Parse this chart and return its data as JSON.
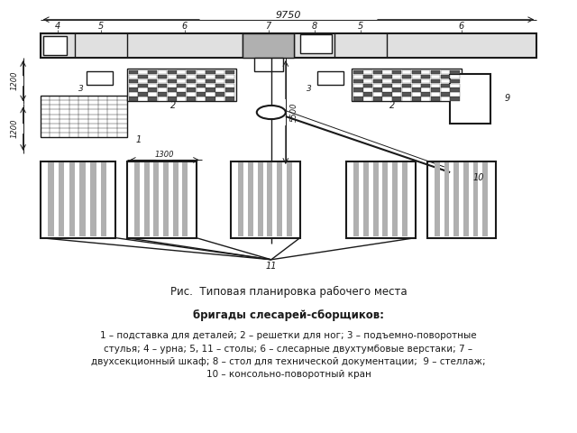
{
  "title_line1": "Рис.  Типовая планировка рабочего места",
  "title_line2": "бригады слесарей-сборщиков:",
  "caption": "1 – подставка для деталей; 2 – решетки для ног; 3 – подъемно-поворотные\nстулья; 4 – урна; 5, 11 – столы; 6 – слесарные двухтумбовые верстаки; 7 –\nдвухсекционный шкаф; 8 – стол для технической документации;  9 – стеллаж;\n10 – консольно-поворотный кран",
  "bg_color": "#ffffff",
  "line_color": "#1a1a1a",
  "fill_light": "#e0e0e0",
  "fill_medium": "#b0b0b0",
  "fill_dark": "#555555",
  "fig_width": 6.4,
  "fig_height": 4.8,
  "dpi": 100
}
